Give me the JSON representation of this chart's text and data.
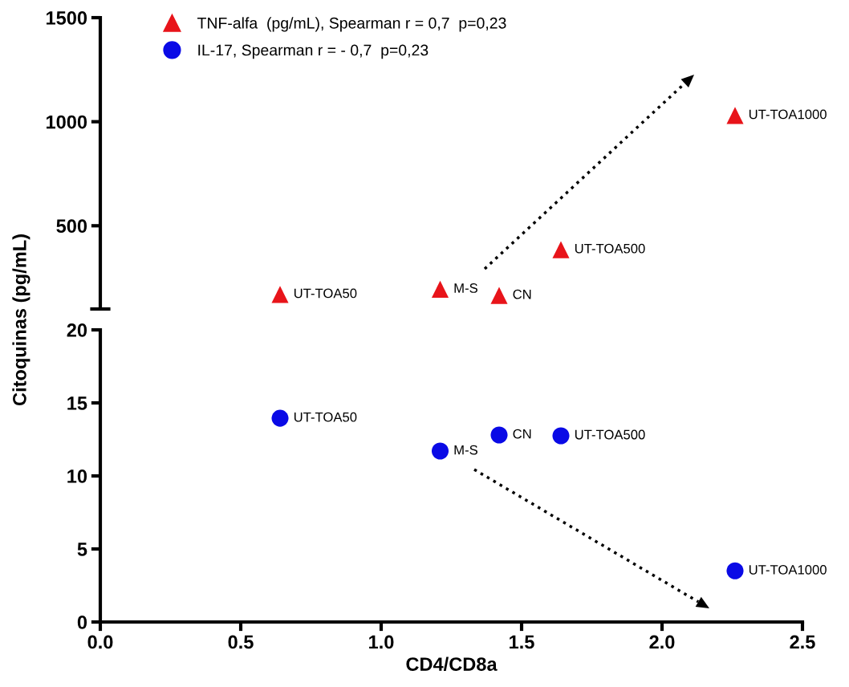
{
  "chart_data": [
    {
      "type": "scatter",
      "ylabel": "Citoquinas (pg/mL)",
      "xlim": [
        0,
        2.5
      ],
      "ylim": [
        100,
        1500
      ],
      "yticks": [
        500,
        1000,
        1500
      ],
      "tick_labels": "y",
      "legend": "top left",
      "marker": "triangle",
      "series": [
        {
          "name": "TNF-alfa  (pg/mL), Spearman r = 0,7  p=0,23",
          "color": "#e8141a",
          "x": [
            0.64,
            1.21,
            1.42,
            1.64,
            2.26
          ],
          "values": [
            170,
            195,
            165,
            385,
            1030
          ]
        }
      ],
      "annotations": [
        {
          "text": "UT-TOA50",
          "x": 0.64,
          "y": 170
        },
        {
          "text": "M-S",
          "x": 1.21,
          "y": 195
        },
        {
          "text": "CN",
          "x": 1.42,
          "y": 165
        },
        {
          "text": "UT-TOA500",
          "x": 1.64,
          "y": 385
        },
        {
          "text": "UT-TOA1000",
          "x": 2.26,
          "y": 1030
        }
      ]
    },
    {
      "type": "scatter",
      "xlabel": "CD4/CD8a",
      "xlim": [
        0,
        2.5
      ],
      "xticks": [
        {
          "value": 0,
          "label": "0.0"
        },
        0.5,
        {
          "value": 1,
          "label": "1.0"
        },
        1.5,
        {
          "value": 2,
          "label": "2.0"
        },
        2.5
      ],
      "ylim": [
        0,
        20
      ],
      "yticks": [
        0,
        5,
        10,
        15,
        20
      ],
      "marker": "circle",
      "series": [
        {
          "name": "IL-17, Spearman r = - 0,7  p=0,23",
          "color": "#0a0ae6",
          "x": [
            0.64,
            1.21,
            1.42,
            1.64,
            2.26
          ],
          "values": [
            13.95,
            11.7,
            12.8,
            12.75,
            3.5
          ]
        }
      ],
      "annotations": [
        {
          "text": "UT-TOA50",
          "x": 0.64,
          "y": 13.95
        },
        {
          "text": "M-S",
          "x": 1.21,
          "y": 11.7
        },
        {
          "text": "CN",
          "x": 1.42,
          "y": 12.8
        },
        {
          "text": "UT-TOA500",
          "x": 1.64,
          "y": 12.75
        },
        {
          "text": "UT-TOA1000",
          "x": 2.26,
          "y": 3.5
        }
      ]
    }
  ]
}
